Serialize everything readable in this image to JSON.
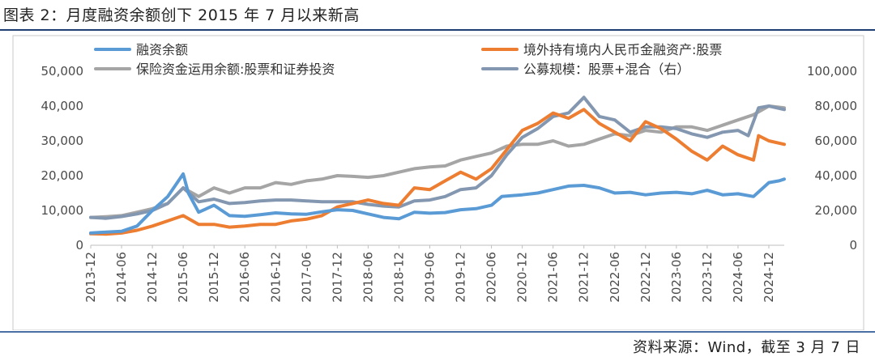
{
  "page": {
    "title": "图表 2：月度融资余额创下 2015 年 7 月以来新高",
    "source": "资料来源：Wind，截至 3 月 7 日"
  },
  "chart_data": {
    "type": "line",
    "title": "月度融资余额创下 2015 年 7 月以来新高",
    "xlabel": "",
    "ylabel": "",
    "x_tick_labels": [
      "2013-12",
      "2014-06",
      "2014-12",
      "2015-06",
      "2015-12",
      "2016-06",
      "2016-12",
      "2017-06",
      "2017-12",
      "2018-06",
      "2018-12",
      "2019-06",
      "2019-12",
      "2020-06",
      "2020-12",
      "2021-06",
      "2021-12",
      "2022-06",
      "2022-12",
      "2023-06",
      "2023-12",
      "2024-06",
      "2024-12"
    ],
    "x_range": [
      "2013-12",
      "2025-03"
    ],
    "ylim_left": [
      0,
      50000
    ],
    "yticks_left": [
      "0",
      "10,000",
      "20,000",
      "30,000",
      "40,000",
      "50,000"
    ],
    "ylim_right": [
      0,
      100000
    ],
    "yticks_right": [
      "0",
      "20,000",
      "40,000",
      "60,000",
      "80,000",
      "100,000"
    ],
    "legend_position": "top",
    "grid": false,
    "series": [
      {
        "name": "融资余额",
        "axis": "left",
        "color": "#5b9bd5",
        "points": [
          [
            "2013-12",
            3500
          ],
          [
            "2014-03",
            3800
          ],
          [
            "2014-06",
            4000
          ],
          [
            "2014-09",
            5500
          ],
          [
            "2014-12",
            10000
          ],
          [
            "2015-03",
            14000
          ],
          [
            "2015-06",
            20500
          ],
          [
            "2015-07",
            15000
          ],
          [
            "2015-09",
            9500
          ],
          [
            "2015-12",
            11500
          ],
          [
            "2016-03",
            8500
          ],
          [
            "2016-06",
            8300
          ],
          [
            "2016-09",
            8800
          ],
          [
            "2016-12",
            9300
          ],
          [
            "2017-03",
            9000
          ],
          [
            "2017-06",
            8900
          ],
          [
            "2017-09",
            9600
          ],
          [
            "2017-12",
            10200
          ],
          [
            "2018-03",
            10000
          ],
          [
            "2018-06",
            9000
          ],
          [
            "2018-09",
            8000
          ],
          [
            "2018-12",
            7600
          ],
          [
            "2019-03",
            9500
          ],
          [
            "2019-06",
            9200
          ],
          [
            "2019-09",
            9400
          ],
          [
            "2019-12",
            10200
          ],
          [
            "2020-03",
            10500
          ],
          [
            "2020-06",
            11500
          ],
          [
            "2020-08",
            14000
          ],
          [
            "2020-12",
            14500
          ],
          [
            "2021-03",
            15000
          ],
          [
            "2021-06",
            16000
          ],
          [
            "2021-09",
            17000
          ],
          [
            "2021-12",
            17200
          ],
          [
            "2022-03",
            16500
          ],
          [
            "2022-06",
            15000
          ],
          [
            "2022-09",
            15200
          ],
          [
            "2022-12",
            14500
          ],
          [
            "2023-03",
            15000
          ],
          [
            "2023-06",
            15200
          ],
          [
            "2023-09",
            14800
          ],
          [
            "2023-12",
            15800
          ],
          [
            "2024-03",
            14500
          ],
          [
            "2024-06",
            14800
          ],
          [
            "2024-09",
            14000
          ],
          [
            "2024-12",
            18000
          ],
          [
            "2025-02",
            18500
          ],
          [
            "2025-03",
            19000
          ]
        ]
      },
      {
        "name": "境外持有境内人民币金融资产:股票",
        "axis": "left",
        "color": "#ed7d31",
        "points": [
          [
            "2013-12",
            3300
          ],
          [
            "2014-03",
            3200
          ],
          [
            "2014-06",
            3500
          ],
          [
            "2014-09",
            4300
          ],
          [
            "2014-12",
            5500
          ],
          [
            "2015-03",
            7000
          ],
          [
            "2015-06",
            8500
          ],
          [
            "2015-09",
            6000
          ],
          [
            "2015-12",
            6000
          ],
          [
            "2016-03",
            5200
          ],
          [
            "2016-06",
            5500
          ],
          [
            "2016-09",
            6000
          ],
          [
            "2016-12",
            6000
          ],
          [
            "2017-03",
            7000
          ],
          [
            "2017-06",
            7500
          ],
          [
            "2017-09",
            8500
          ],
          [
            "2017-12",
            11000
          ],
          [
            "2018-03",
            12000
          ],
          [
            "2018-06",
            13000
          ],
          [
            "2018-09",
            12000
          ],
          [
            "2018-12",
            11500
          ],
          [
            "2019-03",
            16500
          ],
          [
            "2019-06",
            16000
          ],
          [
            "2019-09",
            18500
          ],
          [
            "2019-12",
            21000
          ],
          [
            "2020-03",
            19000
          ],
          [
            "2020-06",
            22000
          ],
          [
            "2020-09",
            27500
          ],
          [
            "2020-12",
            33000
          ],
          [
            "2021-03",
            35000
          ],
          [
            "2021-06",
            38000
          ],
          [
            "2021-09",
            36500
          ],
          [
            "2021-12",
            39000
          ],
          [
            "2022-03",
            35000
          ],
          [
            "2022-06",
            32500
          ],
          [
            "2022-09",
            30000
          ],
          [
            "2022-12",
            35500
          ],
          [
            "2023-03",
            33500
          ],
          [
            "2023-06",
            30500
          ],
          [
            "2023-09",
            27000
          ],
          [
            "2023-12",
            24500
          ],
          [
            "2024-03",
            28500
          ],
          [
            "2024-06",
            26000
          ],
          [
            "2024-09",
            24500
          ],
          [
            "2024-10",
            31500
          ],
          [
            "2024-12",
            30000
          ],
          [
            "2025-03",
            29000
          ]
        ]
      },
      {
        "name": "保险资金运用余额:股票和证券投资",
        "axis": "left",
        "color": "#a5a5a5",
        "points": [
          [
            "2013-12",
            8000
          ],
          [
            "2014-03",
            8200
          ],
          [
            "2014-06",
            8500
          ],
          [
            "2014-09",
            9500
          ],
          [
            "2014-12",
            10500
          ],
          [
            "2015-03",
            12000
          ],
          [
            "2015-06",
            16500
          ],
          [
            "2015-09",
            14000
          ],
          [
            "2015-12",
            16500
          ],
          [
            "2016-03",
            15000
          ],
          [
            "2016-06",
            16500
          ],
          [
            "2016-09",
            16500
          ],
          [
            "2016-12",
            18000
          ],
          [
            "2017-03",
            17500
          ],
          [
            "2017-06",
            18500
          ],
          [
            "2017-09",
            19000
          ],
          [
            "2017-12",
            20000
          ],
          [
            "2018-03",
            19800
          ],
          [
            "2018-06",
            19500
          ],
          [
            "2018-09",
            20000
          ],
          [
            "2018-12",
            21000
          ],
          [
            "2019-03",
            22000
          ],
          [
            "2019-06",
            22500
          ],
          [
            "2019-09",
            22800
          ],
          [
            "2019-12",
            24500
          ],
          [
            "2020-03",
            25500
          ],
          [
            "2020-06",
            26500
          ],
          [
            "2020-09",
            28500
          ],
          [
            "2020-12",
            29000
          ],
          [
            "2021-03",
            29000
          ],
          [
            "2021-06",
            30000
          ],
          [
            "2021-09",
            28500
          ],
          [
            "2021-12",
            29000
          ],
          [
            "2022-03",
            30500
          ],
          [
            "2022-06",
            32000
          ],
          [
            "2022-09",
            31500
          ],
          [
            "2022-12",
            33000
          ],
          [
            "2023-03",
            32500
          ],
          [
            "2023-06",
            34000
          ],
          [
            "2023-09",
            34000
          ],
          [
            "2023-12",
            33000
          ],
          [
            "2024-03",
            34500
          ],
          [
            "2024-06",
            36000
          ],
          [
            "2024-09",
            37500
          ],
          [
            "2024-12",
            40000
          ],
          [
            "2025-03",
            39500
          ]
        ]
      },
      {
        "name": "公募规模：股票+混合（右）",
        "axis": "right",
        "color": "#8497b0",
        "points": [
          [
            "2013-12",
            16000
          ],
          [
            "2014-03",
            15500
          ],
          [
            "2014-06",
            16500
          ],
          [
            "2014-09",
            18000
          ],
          [
            "2014-12",
            20000
          ],
          [
            "2015-03",
            24000
          ],
          [
            "2015-06",
            33000
          ],
          [
            "2015-09",
            25000
          ],
          [
            "2015-12",
            26500
          ],
          [
            "2016-03",
            24000
          ],
          [
            "2016-06",
            24500
          ],
          [
            "2016-09",
            25500
          ],
          [
            "2016-12",
            26000
          ],
          [
            "2017-03",
            26000
          ],
          [
            "2017-06",
            25500
          ],
          [
            "2017-09",
            25000
          ],
          [
            "2017-12",
            25000
          ],
          [
            "2018-03",
            25000
          ],
          [
            "2018-06",
            23500
          ],
          [
            "2018-09",
            22500
          ],
          [
            "2018-12",
            22000
          ],
          [
            "2019-03",
            25500
          ],
          [
            "2019-06",
            26000
          ],
          [
            "2019-09",
            28000
          ],
          [
            "2019-12",
            32000
          ],
          [
            "2020-03",
            33000
          ],
          [
            "2020-06",
            40000
          ],
          [
            "2020-09",
            52000
          ],
          [
            "2020-12",
            62000
          ],
          [
            "2021-03",
            67000
          ],
          [
            "2021-06",
            74000
          ],
          [
            "2021-09",
            76000
          ],
          [
            "2021-12",
            85000
          ],
          [
            "2022-03",
            74000
          ],
          [
            "2022-06",
            72000
          ],
          [
            "2022-09",
            65000
          ],
          [
            "2022-12",
            68000
          ],
          [
            "2023-03",
            68000
          ],
          [
            "2023-06",
            67000
          ],
          [
            "2023-09",
            64000
          ],
          [
            "2023-12",
            62000
          ],
          [
            "2024-03",
            65000
          ],
          [
            "2024-06",
            66000
          ],
          [
            "2024-08",
            63000
          ],
          [
            "2024-10",
            79000
          ],
          [
            "2024-12",
            80000
          ],
          [
            "2025-03",
            78000
          ]
        ]
      }
    ]
  }
}
